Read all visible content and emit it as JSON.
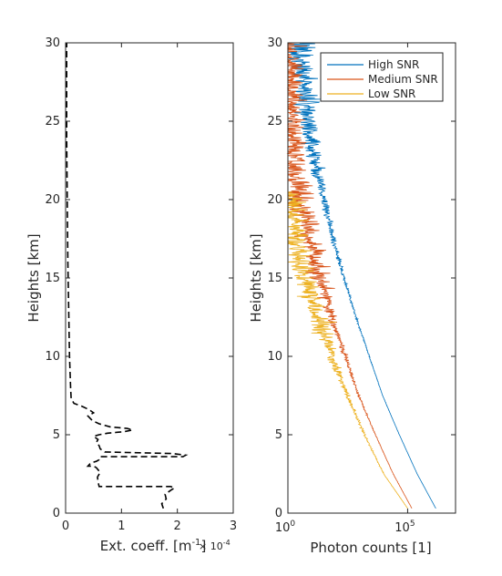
{
  "chart_data": [
    {
      "type": "line",
      "xlabel_main": "Ext. coeff. [m",
      "xlabel_sup": "-1",
      "xlabel_end": "]",
      "x_multiplier_label": "× 10",
      "x_multiplier_exp": "-4",
      "ylabel": "Heights [km]",
      "xlim": [
        0,
        3
      ],
      "ylim": [
        0,
        30
      ],
      "xticks": [
        "0",
        "1",
        "2",
        "3"
      ],
      "yticks": [
        "0",
        "5",
        "10",
        "15",
        "20",
        "25",
        "30"
      ],
      "grid": false,
      "series": [
        {
          "style": "dashed",
          "color": "#000000",
          "x": [
            1.75,
            1.72,
            1.8,
            1.78,
            1.9,
            1.95,
            1.88,
            0.6,
            0.58,
            0.57,
            0.62,
            0.55,
            0.5,
            0.4,
            0.45,
            0.55,
            0.6,
            0.62,
            2.1,
            2.15,
            1.9,
            0.7,
            0.62,
            0.6,
            0.55,
            0.58,
            0.5,
            0.6,
            0.75,
            1.05,
            1.2,
            1.1,
            0.8,
            0.6,
            0.48,
            0.4,
            0.5,
            0.42,
            0.3,
            0.15,
            0.1,
            0.09,
            0.08,
            0.07,
            0.06,
            0.05,
            0.04,
            0.03,
            0.02,
            0.02,
            0.02
          ],
          "y": [
            0.3,
            0.6,
            0.9,
            1.2,
            1.5,
            1.6,
            1.7,
            1.7,
            2.0,
            2.3,
            2.6,
            2.9,
            3.0,
            3.0,
            3.2,
            3.3,
            3.4,
            3.6,
            3.6,
            3.7,
            3.8,
            3.9,
            4.1,
            4.3,
            4.5,
            4.7,
            4.9,
            5.0,
            5.1,
            5.2,
            5.3,
            5.4,
            5.5,
            5.7,
            5.9,
            6.2,
            6.4,
            6.6,
            6.8,
            7.0,
            7.3,
            8.0,
            9.0,
            10.0,
            12.0,
            14.0,
            16.0,
            20.0,
            24.0,
            28.0,
            30.0
          ]
        }
      ]
    },
    {
      "type": "line",
      "xlabel": "Photon counts [1]",
      "ylabel": "Heights [km]",
      "xscale": "log",
      "xlim": [
        1,
        10000000
      ],
      "ylim": [
        0,
        30
      ],
      "xticks": [
        {
          "value": 1,
          "base": "10",
          "exp": "0"
        },
        {
          "value": 100000,
          "base": "10",
          "exp": "5"
        }
      ],
      "yticks": [
        "0",
        "5",
        "10",
        "15",
        "20",
        "25",
        "30"
      ],
      "grid": false,
      "legend": "top-right",
      "series": [
        {
          "name": "High SNR",
          "color": "#0072BD",
          "noise": 0.25,
          "x": [
            1500000,
            250000,
            45000,
            9000,
            2500,
            700,
            220,
            75,
            30,
            13,
            7,
            4.5,
            3.5
          ],
          "y": [
            0.3,
            2.5,
            5,
            7.5,
            10,
            12.5,
            15,
            17.5,
            20,
            22.5,
            25,
            27.5,
            30
          ]
        },
        {
          "name": "Medium SNR",
          "color": "#D95319",
          "noise": 0.45,
          "x": [
            150000,
            25000,
            4500,
            900,
            250,
            70,
            22,
            8,
            3.5,
            2,
            1.5,
            1.2,
            1.05
          ],
          "y": [
            0.3,
            2.5,
            5,
            7.5,
            10,
            12.5,
            15,
            17.5,
            20,
            22.5,
            25,
            27.5,
            30
          ]
        },
        {
          "name": "Low SNR",
          "color": "#EDB120",
          "noise": 0.6,
          "x": [
            100000,
            10000,
            1600,
            300,
            70,
            18,
            5,
            2.2,
            1.3
          ],
          "y": [
            0.3,
            2.5,
            5,
            7.5,
            10,
            12.5,
            15,
            17.5,
            20.5
          ]
        }
      ]
    }
  ]
}
